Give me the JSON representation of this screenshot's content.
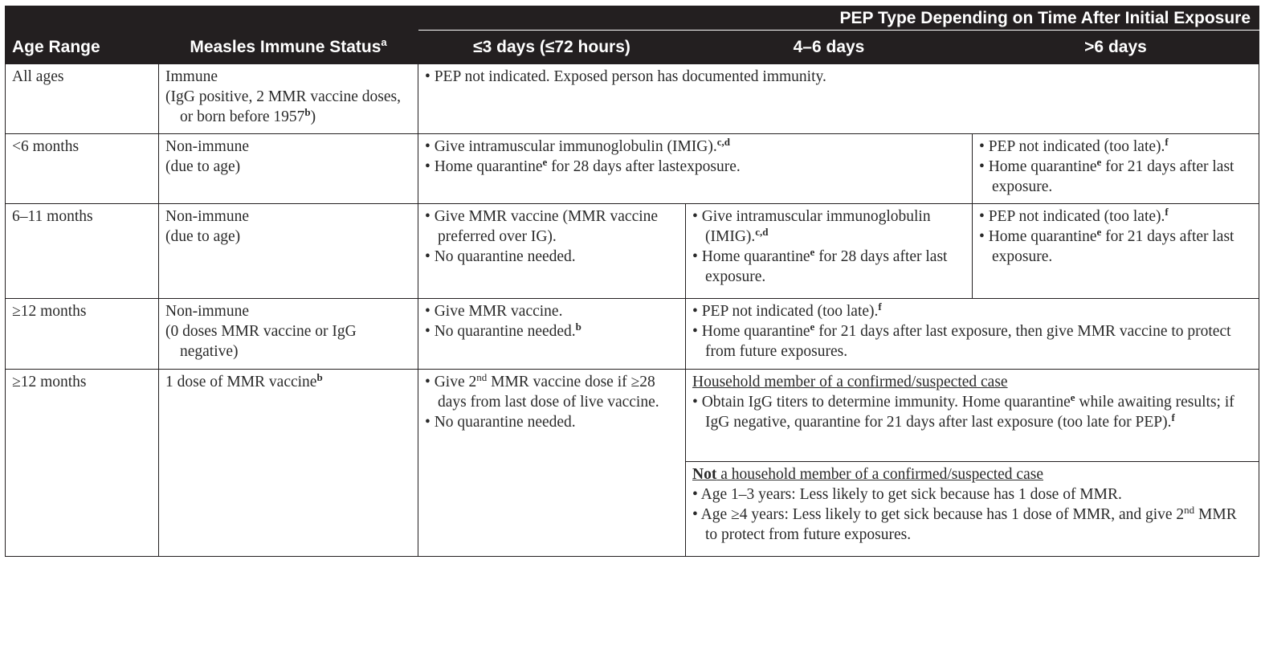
{
  "header": {
    "group_title": "PEP Type Depending on Time After Initial Exposure",
    "col_age": "Age Range",
    "col_status": "Measles Immune Status",
    "col_status_sup": "a",
    "col_t1": "≤3 days (≤72 hours)",
    "col_t2": "4–6 days",
    "col_t3": ">6 days"
  },
  "rows": [
    {
      "age": "All ages",
      "status_l1": "Immune",
      "status_l2": "(IgG positive, 2 MMR vaccine doses, or born before 1957",
      "status_l2_sup": "b",
      "status_l2_end": ")",
      "all": "PEP not indicated. Exposed person has documented immunity."
    },
    {
      "age": "<6 months",
      "status_l1": "Non-immune",
      "status_l2": "(due to age)",
      "t12_b1": "Give intramuscular immunoglobulin (IMIG).",
      "t12_b1_sup": "c,d",
      "t12_b2_a": "Home quarantine",
      "t12_b2_sup": "e",
      "t12_b2_b": " for 28 days after lastexposure.",
      "t3_b1": "PEP not indicated (too late).",
      "t3_b1_sup": "f",
      "t3_b2_a": "Home quarantine",
      "t3_b2_sup": "e",
      "t3_b2_b": " for 21 days after last exposure."
    },
    {
      "age": "6–11 months",
      "status_l1": "Non-immune",
      "status_l2": "(due to age)",
      "t1_b1": "Give MMR vaccine (MMR vaccine preferred over IG).",
      "t1_b2": "No quarantine needed.",
      "t2_b1": "Give intramuscular immunoglobulin (IMIG).",
      "t2_b1_sup": "c,d",
      "t2_b2_a": "Home quarantine",
      "t2_b2_sup": "e",
      "t2_b2_b": " for 28 days after last exposure.",
      "t3_b1": "PEP not indicated (too late).",
      "t3_b1_sup": "f",
      "t3_b2_a": "Home quarantine",
      "t3_b2_sup": "e",
      "t3_b2_b": " for 21 days after last exposure."
    },
    {
      "age": "≥12 months",
      "status_l1": "Non-immune",
      "status_l2": "(0 doses MMR vaccine or IgG negative)",
      "t1_b1": "Give MMR vaccine.",
      "t1_b2": "No quarantine needed.",
      "t1_b2_sup": "b",
      "t23_b1": "PEP not indicated (too late).",
      "t23_b1_sup": "f",
      "t23_b2_a": "Home quarantine",
      "t23_b2_sup": "e",
      "t23_b2_b": " for 21 days after last exposure, then give MMR vaccine to protect from future exposures."
    },
    {
      "age": "≥12 months",
      "status": "1 dose of MMR vaccine",
      "status_sup": "b",
      "t1_b1_a": "Give 2",
      "t1_b1_sup": "nd",
      "t1_b1_b": " MMR vaccine dose if ≥28 days from last dose of live vaccine.",
      "t1_b2": "No quarantine needed.",
      "household_title": "Household member of a confirmed/suspected case",
      "household_b1_a": "Obtain IgG titers to determine immunity. Home quarantine",
      "household_b1_sup": "e",
      "household_b1_b": " while awaiting results; if IgG negative, quarantine for 21 days after last exposure (too late for PEP).",
      "household_b1_sup2": "f",
      "nonhousehold_title_bold": "Not",
      "nonhousehold_title_rest": " a household member of a confirmed/suspected case",
      "nonhousehold_b1": "Age 1–3 years: Less likely to get sick because has 1 dose of MMR.",
      "nonhousehold_b2_a": "Age ≥4 years: Less likely to get sick because has 1 dose of MMR, and give 2",
      "nonhousehold_b2_sup": "nd",
      "nonhousehold_b2_b": " MMR to protect from future exposures."
    }
  ],
  "bullet_char": "•"
}
